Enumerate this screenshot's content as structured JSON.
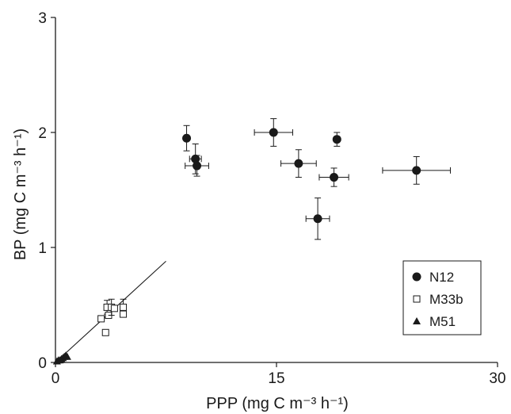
{
  "chart_data": {
    "type": "scatter",
    "xlabel": "PPP (mg C m⁻³ h⁻¹)",
    "ylabel": "BP (mg C m⁻³ h⁻¹)",
    "xlim": [
      0,
      30
    ],
    "ylim": [
      0,
      3
    ],
    "xticks": [
      0,
      15,
      30
    ],
    "yticks": [
      0,
      1,
      2,
      3
    ],
    "grid": false,
    "legend_position": "bottom-right",
    "series": [
      {
        "name": "N12",
        "marker": "filled-circle",
        "points": [
          {
            "x": 8.9,
            "y": 1.95,
            "yerr": 0.11
          },
          {
            "x": 9.5,
            "y": 1.77,
            "yerr": 0.13,
            "xerr": 0.4
          },
          {
            "x": 9.6,
            "y": 1.71,
            "yerr": 0.09,
            "xerr": 0.8
          },
          {
            "x": 14.8,
            "y": 2.0,
            "yerr": 0.12,
            "xerr": 1.3
          },
          {
            "x": 16.5,
            "y": 1.73,
            "yerr": 0.12,
            "xerr": 1.2
          },
          {
            "x": 17.8,
            "y": 1.25,
            "yerr": 0.18,
            "xerr": 0.8
          },
          {
            "x": 18.9,
            "y": 1.61,
            "yerr": 0.08,
            "xerr": 1.0
          },
          {
            "x": 19.1,
            "y": 1.94,
            "yerr": 0.06
          },
          {
            "x": 24.5,
            "y": 1.67,
            "yerr": 0.12,
            "xerr": 2.3
          }
        ]
      },
      {
        "name": "M33b",
        "marker": "open-square",
        "points": [
          {
            "x": 3.1,
            "y": 0.38
          },
          {
            "x": 3.4,
            "y": 0.26
          },
          {
            "x": 3.5,
            "y": 0.48,
            "yerr": 0.06
          },
          {
            "x": 3.6,
            "y": 0.41
          },
          {
            "x": 3.8,
            "y": 0.48,
            "yerr": 0.07
          },
          {
            "x": 4.0,
            "y": 0.47
          },
          {
            "x": 4.6,
            "y": 0.48,
            "yerr": 0.07
          },
          {
            "x": 4.6,
            "y": 0.42
          }
        ]
      },
      {
        "name": "M51",
        "marker": "filled-triangle",
        "points": [
          {
            "x": 0.1,
            "y": 0.01
          },
          {
            "x": 0.2,
            "y": 0.02
          },
          {
            "x": 0.3,
            "y": 0.02
          },
          {
            "x": 0.4,
            "y": 0.03
          },
          {
            "x": 0.5,
            "y": 0.04
          },
          {
            "x": 0.6,
            "y": 0.05
          },
          {
            "x": 0.7,
            "y": 0.06
          },
          {
            "x": 0.8,
            "y": 0.05
          }
        ]
      }
    ],
    "regression_line": {
      "x": [
        0,
        7.5
      ],
      "y": [
        0,
        0.88
      ]
    }
  }
}
